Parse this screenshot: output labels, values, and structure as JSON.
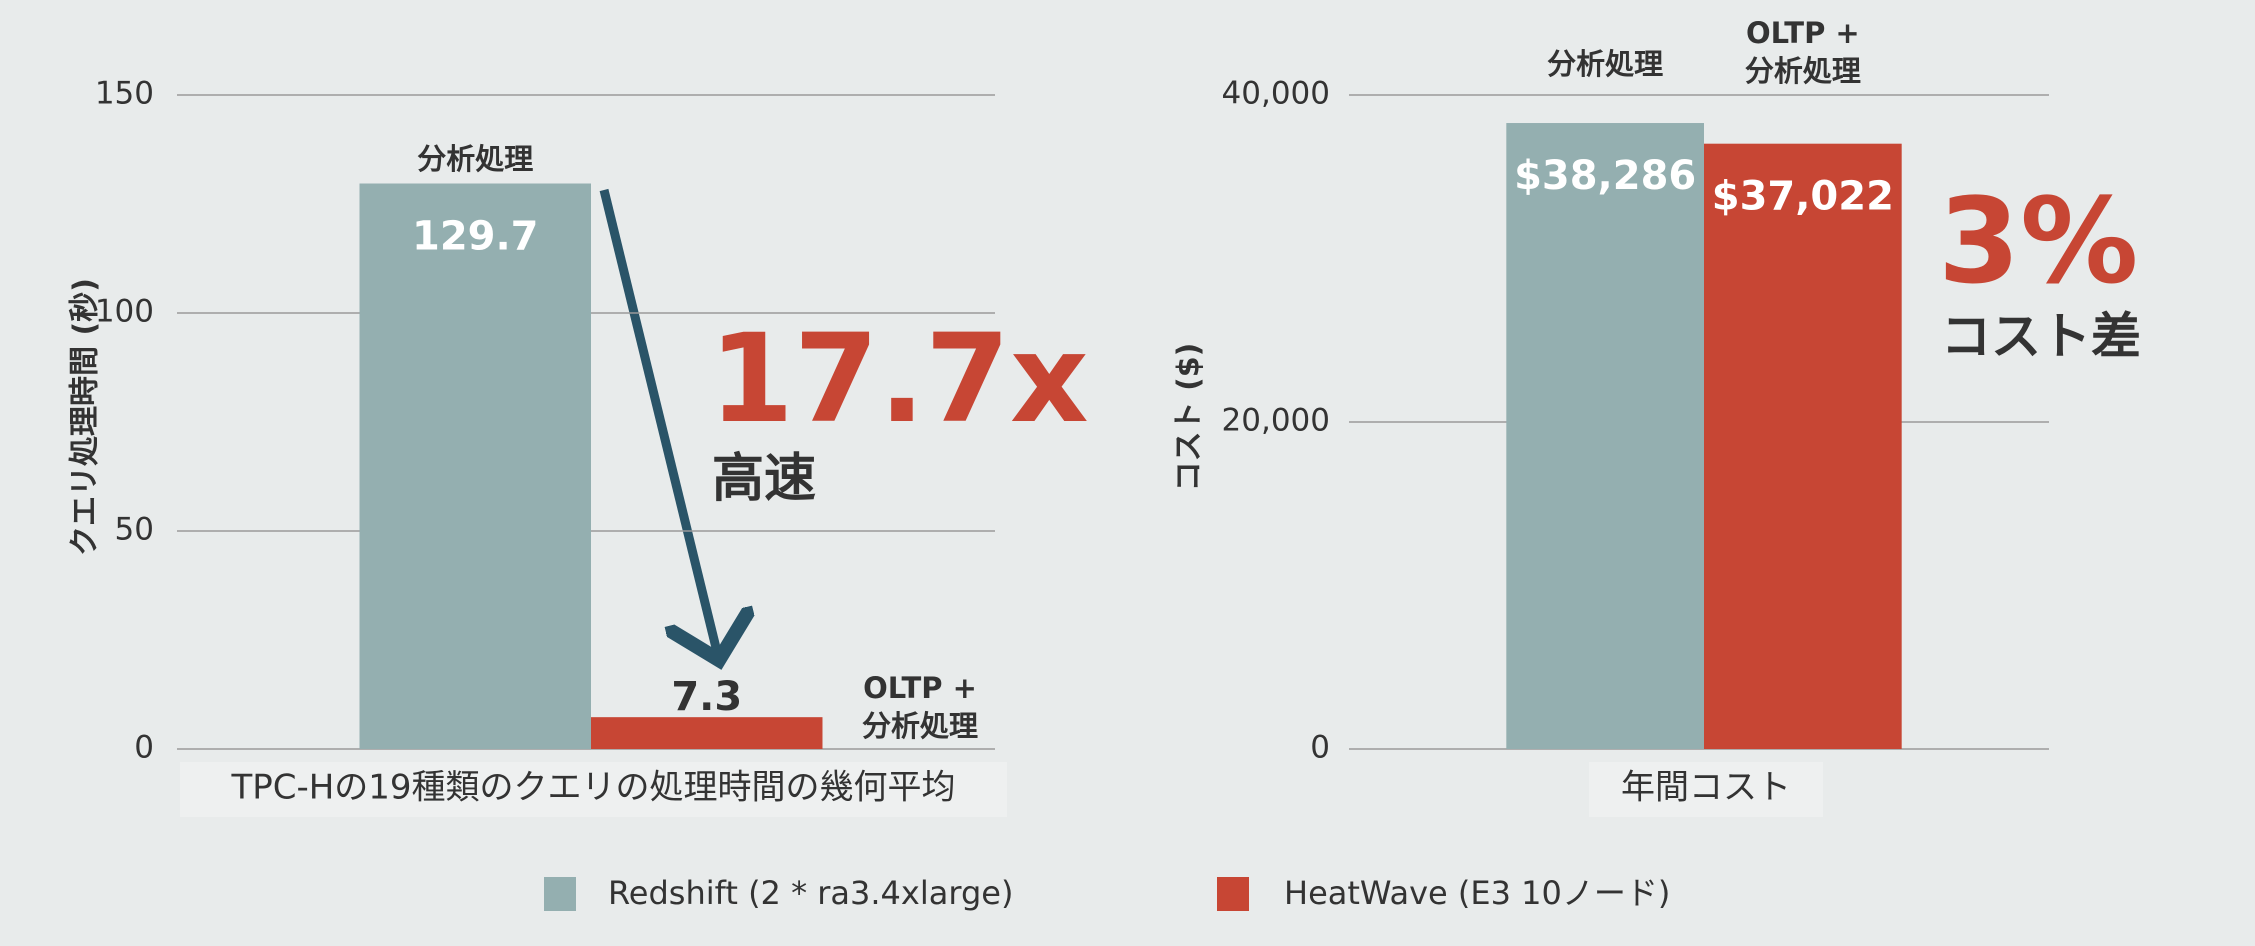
{
  "chart_data": [
    {
      "type": "bar",
      "categories": [
        "TPC-Hの19種類のクエリの処理時間の幾何平均"
      ],
      "y_label": "クエリ処理時間 (秒)",
      "series": [
        {
          "name": "Redshift (2 * ra3.4xlarge)",
          "color": "#94afb0",
          "values": [
            129.7
          ]
        },
        {
          "name": "HeatWave (E3 10ノード)",
          "color": "#c74634",
          "values": [
            7.3
          ]
        }
      ],
      "bar_labels": [
        [
          "分析処理"
        ],
        [
          "OLTP +",
          "分析処理"
        ]
      ],
      "annotations": [
        "17.7x",
        "高速"
      ],
      "ylim": [
        0,
        150
      ],
      "yticks": [
        0,
        50,
        100,
        150
      ],
      "grid": true
    },
    {
      "type": "bar",
      "categories": [
        "年間コスト"
      ],
      "y_label": "コスト ($)",
      "series": [
        {
          "color": "#94afb0",
          "values": [
            38286
          ],
          "value_labels": [
            "$38,286"
          ]
        },
        {
          "color": "#c74634",
          "values": [
            37022
          ],
          "value_labels": [
            "$37,022"
          ]
        }
      ],
      "bar_labels": [
        [
          "分析処理"
        ],
        [
          "OLTP +",
          "分析処理"
        ]
      ],
      "annotations": [
        "3%",
        "コスト差"
      ],
      "ylim": [
        0,
        40000
      ],
      "yticks": [
        0,
        {
          "value": 20000,
          "label": "20,000"
        },
        {
          "value": 40000,
          "label": "40,000"
        }
      ],
      "grid": true
    }
  ]
}
